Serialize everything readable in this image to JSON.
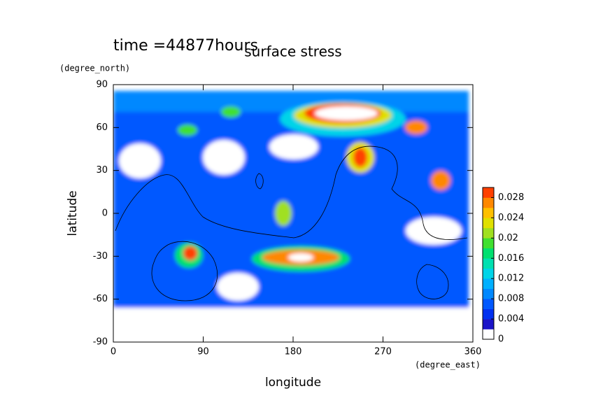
{
  "chart_data": {
    "type": "contour",
    "title": "surface stress",
    "subtitle": "time =44877hours",
    "x_label": "longitude",
    "x_unit": "(degree_east)",
    "y_label": "latitude",
    "y_unit": "(degree_north)",
    "xlim": [
      0,
      360
    ],
    "xticks": [
      0,
      90,
      180,
      270,
      360
    ],
    "ylim": [
      -90,
      90
    ],
    "yticks": [
      -90,
      -60,
      -30,
      0,
      30,
      60,
      90
    ],
    "clim": [
      0,
      0.03
    ],
    "cticks": [
      0,
      0.004,
      0.008,
      0.012,
      0.016,
      0.02,
      0.024,
      0.028
    ],
    "colors": [
      "#ffffff",
      "#1a14c8",
      "#0030f0",
      "#0058ff",
      "#0088ff",
      "#00b0ff",
      "#00d4e8",
      "#00e0b0",
      "#00e070",
      "#40e030",
      "#a0e020",
      "#e0e000",
      "#ffc000",
      "#ff8800",
      "#ff4000"
    ]
  }
}
